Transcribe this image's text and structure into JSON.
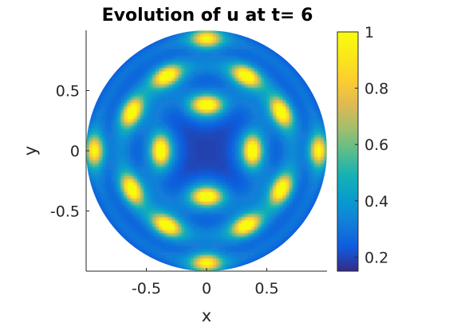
{
  "chart_data": {
    "type": "heatmap",
    "title": "Evolution of u at t= 6",
    "xlabel": "x",
    "ylabel": "y",
    "xlim": [
      -1,
      1
    ],
    "ylim": [
      -1,
      1
    ],
    "domain": "unit disk",
    "x_ticks": [
      "-0.5",
      "0",
      "0.5"
    ],
    "x_tick_values": [
      -0.5,
      0,
      0.5
    ],
    "y_ticks": [
      "0.5",
      "0",
      "-0.5"
    ],
    "y_tick_values": [
      0.5,
      0,
      -0.5
    ],
    "colorbar": {
      "colormap": "parula",
      "range": [
        0.15,
        1
      ],
      "ticks": [
        "1",
        "0.8",
        "0.6",
        "0.4",
        "0.2"
      ],
      "tick_values": [
        1,
        0.8,
        0.6,
        0.4,
        0.2
      ]
    },
    "value_range": [
      0.15,
      1
    ],
    "peaks": [
      {
        "x": 0,
        "y": 0.38,
        "value": 1.0
      },
      {
        "x": 0,
        "y": -0.38,
        "value": 1.0
      },
      {
        "x": 0.38,
        "y": 0,
        "value": 1.0
      },
      {
        "x": -0.38,
        "y": 0,
        "value": 1.0
      },
      {
        "x": 0.33,
        "y": 0.62,
        "value": 1.0
      },
      {
        "x": -0.33,
        "y": 0.62,
        "value": 1.0
      },
      {
        "x": 0.33,
        "y": -0.62,
        "value": 1.0
      },
      {
        "x": -0.33,
        "y": -0.62,
        "value": 1.0
      },
      {
        "x": 0.62,
        "y": 0.32,
        "value": 1.0
      },
      {
        "x": -0.62,
        "y": 0.32,
        "value": 1.0
      },
      {
        "x": 0.62,
        "y": -0.32,
        "value": 1.0
      },
      {
        "x": -0.62,
        "y": -0.32,
        "value": 1.0
      },
      {
        "x": 0,
        "y": 0.93,
        "value": 0.85
      },
      {
        "x": 0,
        "y": -0.93,
        "value": 0.85
      },
      {
        "x": 0.93,
        "y": 0,
        "value": 0.85
      },
      {
        "x": -0.93,
        "y": 0,
        "value": 0.85
      }
    ]
  }
}
